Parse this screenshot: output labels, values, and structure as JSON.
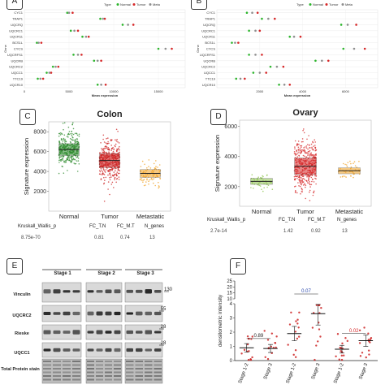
{
  "panels": {
    "a_label": "A",
    "b_label": "B",
    "c_label": "C",
    "d_label": "D",
    "e_label": "E",
    "f_label": "F"
  },
  "chart_data": [
    {
      "id": "A",
      "type": "scatter",
      "genes": [
        "CYC1",
        "TRAP1",
        "UQCRQ",
        "UQCRC1",
        "UQCR11",
        "BCS1L",
        "CYCS",
        "UQCRFS1",
        "UQCRB",
        "UQCRC2",
        "UQCC1",
        "TTC19",
        "UQCR10"
      ],
      "legend": [
        "Normal",
        "Tumor",
        "Meta"
      ],
      "legend_title": "Type",
      "xlabel": "Mean expression",
      "ylabel": "Gene",
      "xticks": [
        "0",
        "5000",
        "10000",
        "15000"
      ],
      "xlim": [
        0,
        18000
      ],
      "colors": {
        "Normal": "#2db52d",
        "Tumor": "#d62728",
        "Meta": "#8e8e8e"
      }
    },
    {
      "id": "B",
      "type": "scatter",
      "genes": [
        "CYC1",
        "TRAP1",
        "UQCRQ",
        "UQCRC1",
        "UQCR11",
        "BCS1L",
        "CYCS",
        "UQCRFS1",
        "UQCRB",
        "UQCRC2",
        "UQCC1",
        "TTC19",
        "UQCR10"
      ],
      "legend": [
        "Normal",
        "Tumor",
        "Meta"
      ],
      "legend_title": "Type",
      "xlabel": "Mean expression",
      "ylabel": "Gene",
      "xticks": [
        "2000",
        "4000",
        "6000"
      ],
      "xlim": [
        0,
        7500
      ],
      "colors": {
        "Normal": "#2db52d",
        "Tumor": "#d62728",
        "Meta": "#8e8e8e"
      }
    },
    {
      "id": "C",
      "type": "box-jitter",
      "title": "Colon",
      "ylabel": "Signature expression",
      "categories": [
        "Normal",
        "Tumor",
        "Metastatic"
      ],
      "yticks": [
        2000,
        4000,
        6000,
        8000
      ],
      "ylim": [
        0,
        9000
      ],
      "boxes": [
        {
          "q1": 5600,
          "median": 6200,
          "q3": 6800,
          "low": 2500,
          "high": 8900,
          "color": "#2e8b2e",
          "points": 320
        },
        {
          "q1": 4400,
          "median": 5100,
          "q3": 5800,
          "low": 1000,
          "high": 8800,
          "color": "#cc2222",
          "points": 420
        },
        {
          "q1": 3400,
          "median": 3800,
          "q3": 4200,
          "low": 1500,
          "high": 6000,
          "color": "#f0a020",
          "points": 90
        }
      ],
      "table_headers": [
        "Kruskall_Wallis_p",
        "FC_T.N",
        "FC_M.T",
        "N_genes"
      ],
      "table_values": [
        "8.75e-70",
        "0.81",
        "0.74",
        "13"
      ]
    },
    {
      "id": "D",
      "type": "box-jitter",
      "title": "Ovary",
      "ylabel": "Signature expression",
      "categories": [
        "Normal",
        "Tumor",
        "Metastatic"
      ],
      "yticks": [
        2000,
        4000,
        6000
      ],
      "ylim": [
        700,
        6400
      ],
      "boxes": [
        {
          "q1": 2150,
          "median": 2350,
          "q3": 2550,
          "low": 1600,
          "high": 3200,
          "color": "#8bc34a",
          "points": 40
        },
        {
          "q1": 2800,
          "median": 3350,
          "q3": 3900,
          "low": 1000,
          "high": 6100,
          "color": "#d62728",
          "points": 420
        },
        {
          "q1": 2850,
          "median": 3050,
          "q3": 3250,
          "low": 2200,
          "high": 4200,
          "color": "#f0a020",
          "points": 45
        }
      ],
      "table_headers": [
        "Kruskall_Wallis_p",
        "FC_T.N",
        "FC_M.T",
        "N_genes"
      ],
      "table_values": [
        "2.7e-14",
        "1.42",
        "0.92",
        "13"
      ]
    },
    {
      "id": "F",
      "type": "scatter-mean",
      "ylabel": "densitometric intensity",
      "yticks": [
        "0",
        "1",
        "2",
        "3",
        "4",
        "10",
        "15",
        "20",
        "25"
      ],
      "groups": [
        "Stage 1-2",
        "Stage 3",
        "Stage 1-2",
        "Stage 3",
        "Stage 1-2",
        "Stage 3"
      ],
      "means": [
        0.9,
        0.85,
        1.9,
        3.3,
        0.8,
        1.4
      ],
      "pvalues": [
        "0.89",
        "0.07",
        "0.02"
      ],
      "colors": [
        "#cc2222",
        "#cc2222",
        "#cc2222",
        "#cc2222",
        "#cc2222",
        "#cc2222"
      ]
    }
  ],
  "blot": {
    "stages": [
      "Stage 1",
      "Stage 2",
      "Stage 3"
    ],
    "rows": [
      "Vinculin",
      "UQCRC2",
      "Rieske",
      "UQCC1",
      "Total Protein stain"
    ],
    "markers": [
      "130",
      "55",
      "28",
      "28"
    ]
  }
}
